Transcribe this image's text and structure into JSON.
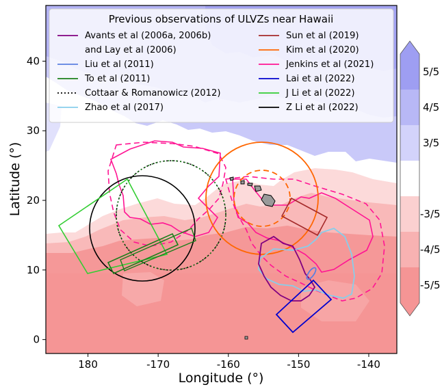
{
  "chart_data": {
    "type": "map",
    "title": "",
    "xlabel": "Longitude (°)",
    "ylabel": "Latitude (°)",
    "xlim": [
      174,
      -136
    ],
    "ylim": [
      -2,
      48
    ],
    "x_ticks": [
      {
        "value": 180,
        "label": "180"
      },
      {
        "value": -170,
        "label": "-170"
      },
      {
        "value": -160,
        "label": "-160"
      },
      {
        "value": -150,
        "label": "-150"
      },
      {
        "value": -140,
        "label": "-140"
      }
    ],
    "y_ticks": [
      {
        "value": 0,
        "label": "0"
      },
      {
        "value": 10,
        "label": "10"
      },
      {
        "value": 20,
        "label": "20"
      },
      {
        "value": 30,
        "label": "30"
      },
      {
        "value": 40,
        "label": "40"
      }
    ],
    "colorbar": {
      "labels": [
        "5/5",
        "4/5",
        "3/5",
        "-3/5",
        "-4/5",
        "-5/5"
      ],
      "colors": {
        "pos5": "#9e9ef2",
        "pos4": "#b8b8f6",
        "pos3": "#d3d3fb",
        "neutral": "#ffffff",
        "neg3": "#fbd0d0",
        "neg4": "#f8b2b2",
        "neg5": "#f59595"
      }
    },
    "legend": {
      "title": "Previous observations of ULVZs near Hawaii",
      "placement": "top",
      "entries": [
        {
          "label": "Avants et al (2006a, 2006b)",
          "label2": "and Lay et al (2006)",
          "color": "#800080",
          "style": "solid"
        },
        {
          "label": "Liu et al (2011)",
          "color": "#5b7fe0",
          "style": "solid"
        },
        {
          "label": "To et al (2011)",
          "color": "#1a7f1a",
          "style": "solid"
        },
        {
          "label": "Cottaar & Romanowicz (2012)",
          "color": "#000000",
          "style": "dotted"
        },
        {
          "label": "Zhao et al (2017)",
          "color": "#87ceeb",
          "style": "solid"
        },
        {
          "label": "Sun et al (2019)",
          "color": "#a52a2a",
          "style": "solid"
        },
        {
          "label": "Kim et al (2020)",
          "color": "#ff6600",
          "style": "solid"
        },
        {
          "label": "Jenkins et al (2021)",
          "color": "#ff1493",
          "style": "solid"
        },
        {
          "label": "Lai et al (2022)",
          "color": "#0000cd",
          "style": "solid"
        },
        {
          "label": "J Li et al (2022)",
          "color": "#32cd32",
          "style": "solid"
        },
        {
          "label": "Z Li et al (2022)",
          "color": "#000000",
          "style": "solid"
        }
      ]
    }
  }
}
